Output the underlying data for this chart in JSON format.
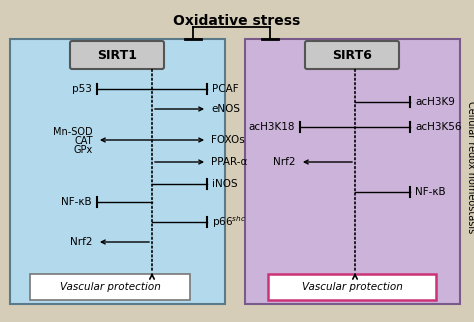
{
  "title": "Oxidative stress",
  "side_label": "Cellular redox homeostasis",
  "bg_color": "#d6cdb8",
  "sirt1_bg": "#b3d9ec",
  "sirt6_bg": "#ccb3d9",
  "sirt1_label": "SIRT1",
  "sirt6_label": "SIRT6",
  "vp_label": "Vascular protection",
  "vp_border1": "#888888",
  "vp_border2": "#cc3377",
  "sirt_box_fill": "#c0c0c0",
  "sirt_box_edge": "#555555"
}
